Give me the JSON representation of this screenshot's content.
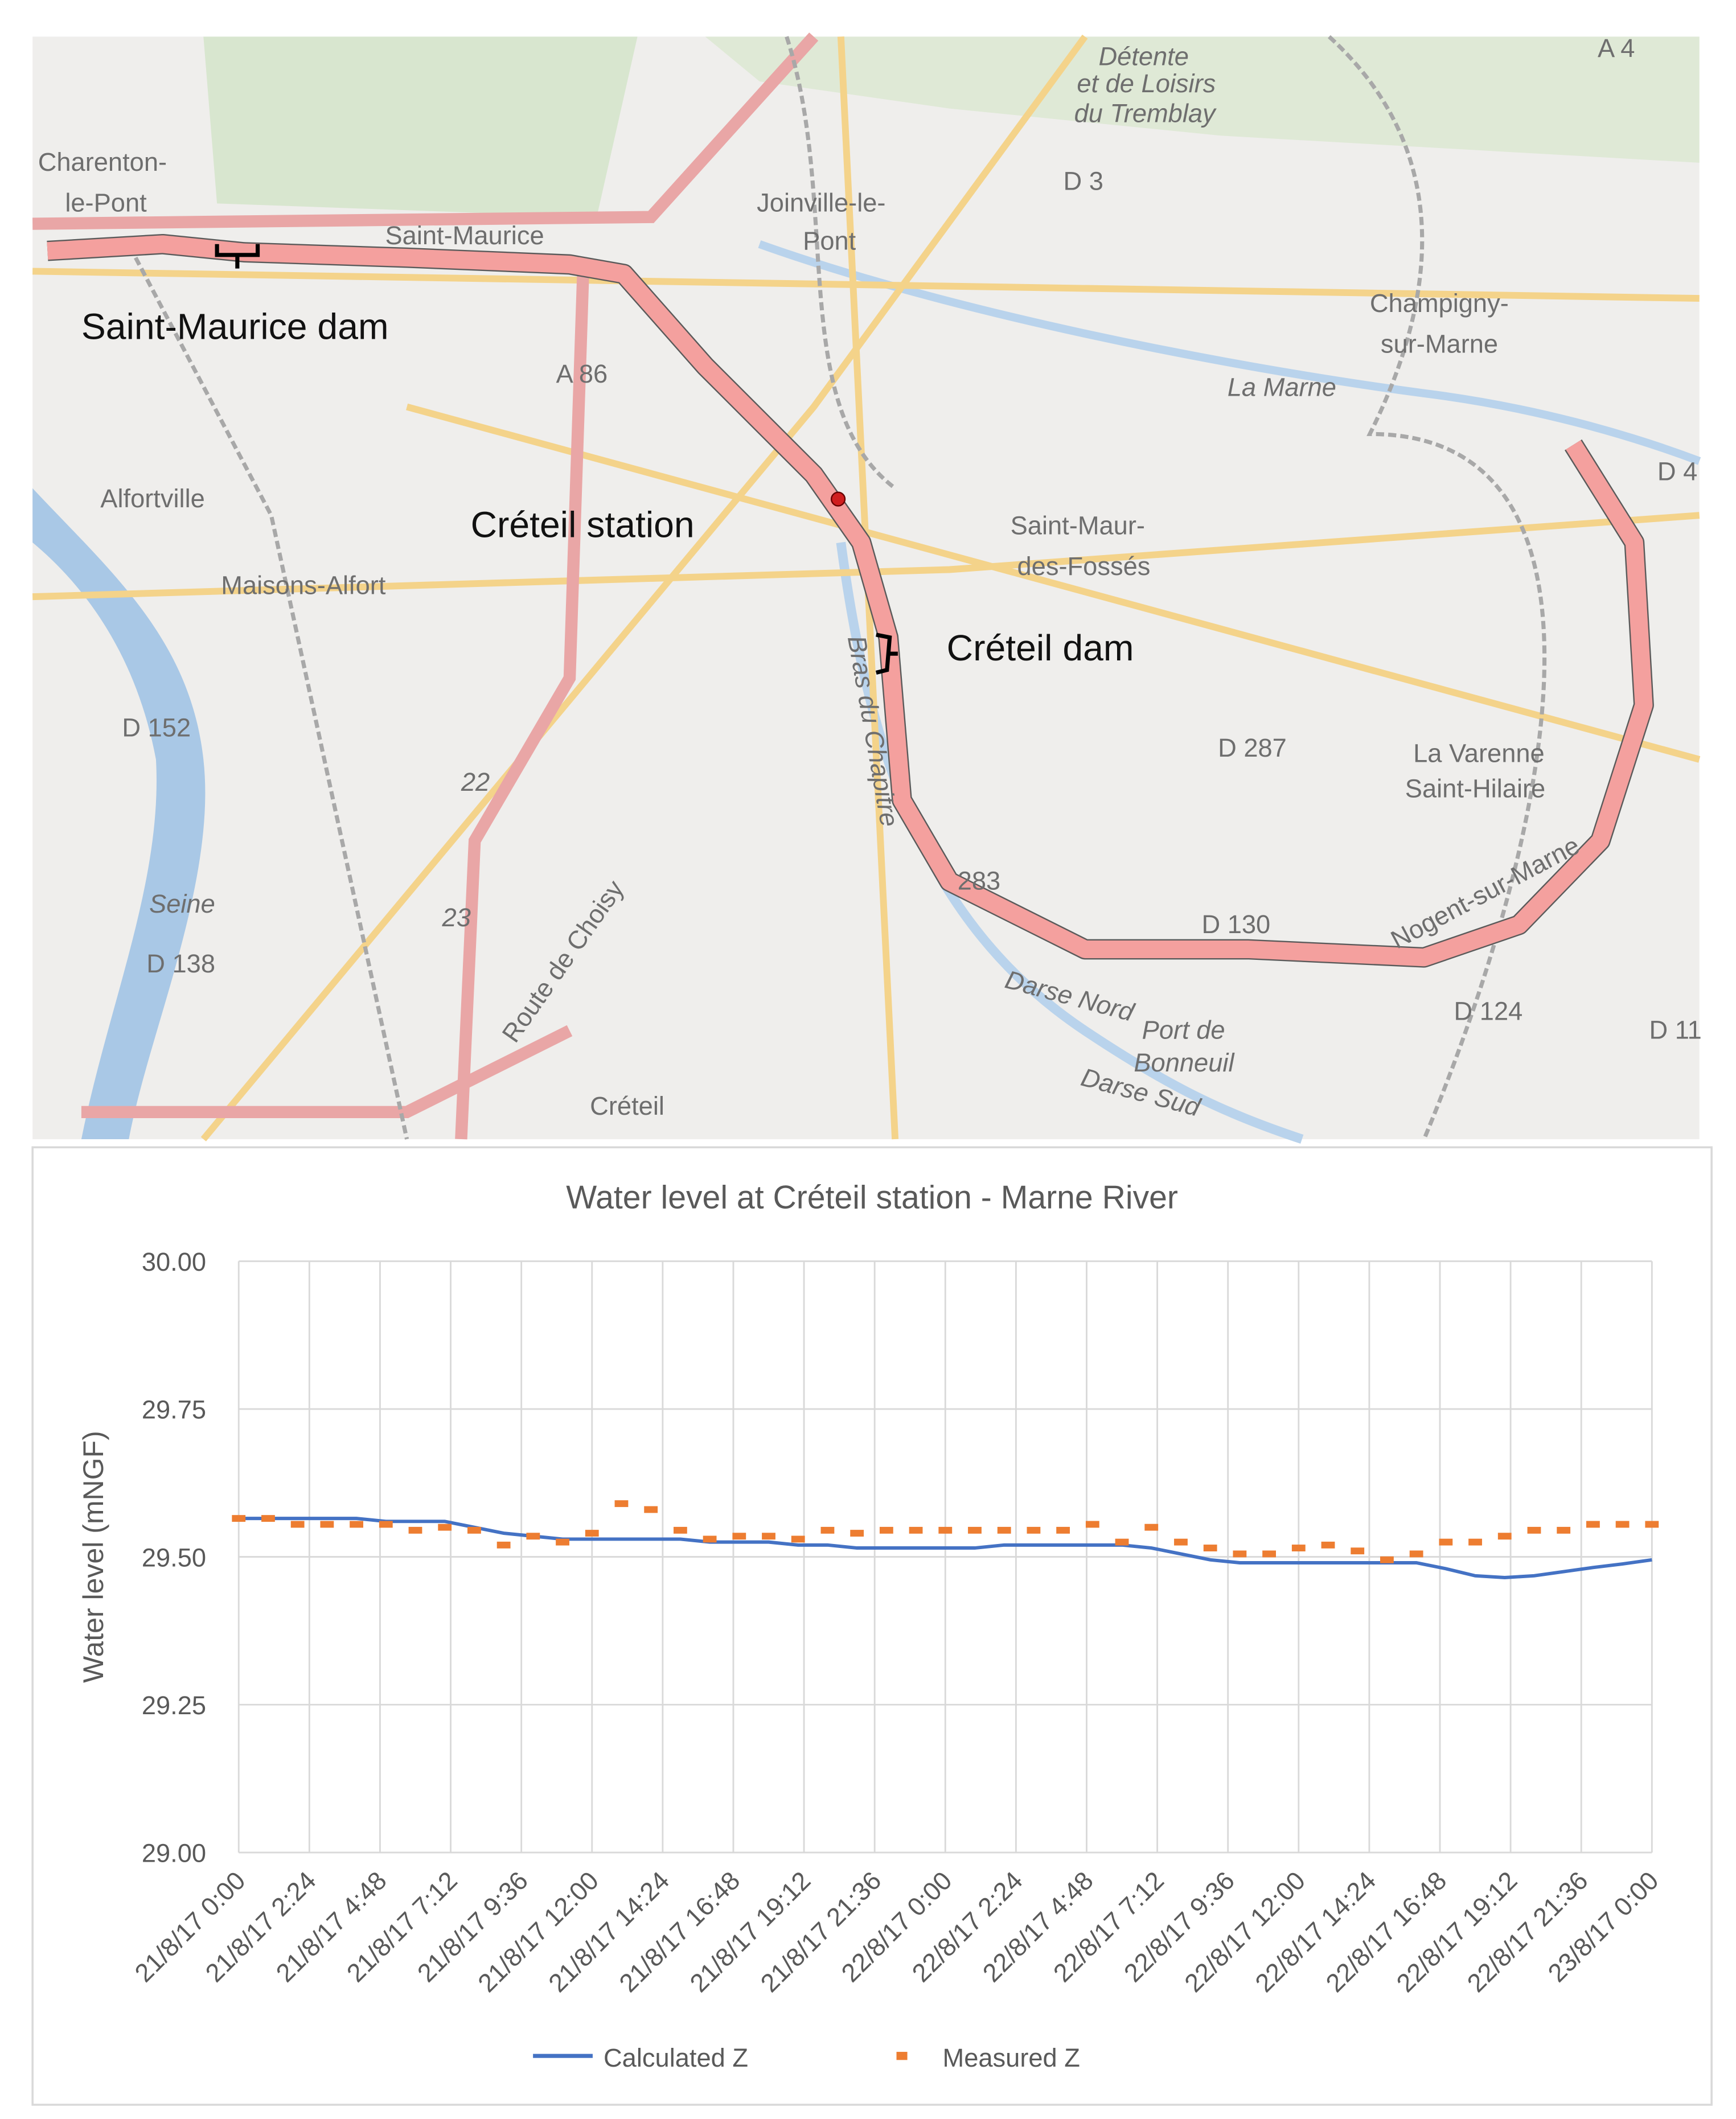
{
  "map": {
    "labels": [
      "Charenton-",
      "le-Pont",
      "Saint-Maurice",
      "Joinville-le-",
      "Pont",
      "Détente",
      "et de Loisirs",
      "du Tremblay",
      "A 4",
      "D 3",
      "Champigny-",
      "sur-Marne",
      "La Marne",
      "D 4",
      "A 86",
      "Alfortville",
      "Saint-Maur-",
      "des-Fossés",
      "Maisons-Alfort",
      "D 152",
      "D 287",
      "La Varenne",
      "Saint-Hilaire",
      "D 130",
      "D 124",
      "D 11",
      "D 138",
      "Seine",
      "22",
      "23",
      "Route de Choisy",
      "Créteil",
      "Port de",
      "Bonneuil",
      "Darse Nord",
      "Darse Sud",
      "Bras du Chapitre",
      "Nogent-sur-Marne",
      "283"
    ],
    "annotations": [
      "Saint-Maurice dam",
      "Créteil station",
      "Créteil dam"
    ]
  },
  "chart_data": {
    "type": "line_scatter",
    "title": "Water level at Créteil station - Marne River",
    "ylabel": "Water level (mNGF)",
    "x": [
      "2017-08-21T00:00",
      "2017-08-21T01:00",
      "2017-08-21T02:00",
      "2017-08-21T03:00",
      "2017-08-21T04:00",
      "2017-08-21T05:00",
      "2017-08-21T06:00",
      "2017-08-21T07:00",
      "2017-08-21T08:00",
      "2017-08-21T09:00",
      "2017-08-21T10:00",
      "2017-08-21T11:00",
      "2017-08-21T12:00",
      "2017-08-21T13:00",
      "2017-08-21T14:00",
      "2017-08-21T15:00",
      "2017-08-21T16:00",
      "2017-08-21T17:00",
      "2017-08-21T18:00",
      "2017-08-21T19:00",
      "2017-08-21T20:00",
      "2017-08-21T21:00",
      "2017-08-21T22:00",
      "2017-08-21T23:00",
      "2017-08-22T00:00",
      "2017-08-22T01:00",
      "2017-08-22T02:00",
      "2017-08-22T03:00",
      "2017-08-22T04:00",
      "2017-08-22T05:00",
      "2017-08-22T06:00",
      "2017-08-22T07:00",
      "2017-08-22T08:00",
      "2017-08-22T09:00",
      "2017-08-22T10:00",
      "2017-08-22T11:00",
      "2017-08-22T12:00",
      "2017-08-22T13:00",
      "2017-08-22T14:00",
      "2017-08-22T15:00",
      "2017-08-22T16:00",
      "2017-08-22T17:00",
      "2017-08-22T18:00",
      "2017-08-22T19:00",
      "2017-08-22T20:00",
      "2017-08-22T21:00",
      "2017-08-22T22:00",
      "2017-08-22T23:00",
      "2017-08-23T00:00"
    ],
    "series": [
      {
        "name": "Calculated Z",
        "color": "#4472c4",
        "style": "line",
        "values": [
          29.565,
          29.565,
          29.565,
          29.565,
          29.565,
          29.56,
          29.56,
          29.56,
          29.55,
          29.54,
          29.535,
          29.53,
          29.53,
          29.53,
          29.53,
          29.53,
          29.525,
          29.525,
          29.525,
          29.52,
          29.52,
          29.515,
          29.515,
          29.515,
          29.515,
          29.515,
          29.52,
          29.52,
          29.52,
          29.52,
          29.52,
          29.515,
          29.505,
          29.495,
          29.49,
          29.49,
          29.49,
          29.49,
          29.49,
          29.49,
          29.49,
          29.48,
          29.468,
          29.465,
          29.468,
          29.475,
          29.482,
          29.488,
          29.495
        ]
      },
      {
        "name": "Measured Z",
        "color": "#ed7d31",
        "style": "markers",
        "values": [
          29.565,
          29.565,
          29.555,
          29.555,
          29.555,
          29.555,
          29.545,
          29.55,
          29.545,
          29.52,
          29.535,
          29.525,
          29.54,
          29.59,
          29.58,
          29.545,
          29.53,
          29.535,
          29.535,
          29.53,
          29.545,
          29.54,
          29.545,
          29.545,
          29.545,
          29.545,
          29.545,
          29.545,
          29.545,
          29.555,
          29.525,
          29.55,
          29.525,
          29.515,
          29.505,
          29.505,
          29.515,
          29.52,
          29.51,
          29.495,
          29.505,
          29.525,
          29.525,
          29.535,
          29.545,
          29.545,
          29.555,
          29.555,
          29.555
        ]
      }
    ],
    "xlim": [
      "2017-08-21T00:00",
      "2017-08-23T00:00"
    ],
    "xticks": [
      {
        "value": "2017-08-21T00:00",
        "label": "21/8/17 0:00"
      },
      {
        "value": "2017-08-21T02:24",
        "label": "21/8/17 2:24"
      },
      {
        "value": "2017-08-21T04:48",
        "label": "21/8/17 4:48"
      },
      {
        "value": "2017-08-21T07:12",
        "label": "21/8/17 7:12"
      },
      {
        "value": "2017-08-21T09:36",
        "label": "21/8/17 9:36"
      },
      {
        "value": "2017-08-21T12:00",
        "label": "21/8/17 12:00"
      },
      {
        "value": "2017-08-21T14:24",
        "label": "21/8/17 14:24"
      },
      {
        "value": "2017-08-21T16:48",
        "label": "21/8/17 16:48"
      },
      {
        "value": "2017-08-21T19:12",
        "label": "21/8/17 19:12"
      },
      {
        "value": "2017-08-21T21:36",
        "label": "21/8/17 21:36"
      },
      {
        "value": "2017-08-22T00:00",
        "label": "22/8/17 0:00"
      },
      {
        "value": "2017-08-22T02:24",
        "label": "22/8/17 2:24"
      },
      {
        "value": "2017-08-22T04:48",
        "label": "22/8/17 4:48"
      },
      {
        "value": "2017-08-22T07:12",
        "label": "22/8/17 7:12"
      },
      {
        "value": "2017-08-22T09:36",
        "label": "22/8/17 9:36"
      },
      {
        "value": "2017-08-22T12:00",
        "label": "22/8/17 12:00"
      },
      {
        "value": "2017-08-22T14:24",
        "label": "22/8/17 14:24"
      },
      {
        "value": "2017-08-22T16:48",
        "label": "22/8/17 16:48"
      },
      {
        "value": "2017-08-22T19:12",
        "label": "22/8/17 19:12"
      },
      {
        "value": "2017-08-22T21:36",
        "label": "22/8/17 21:36"
      },
      {
        "value": "2017-08-23T00:00",
        "label": "23/8/17 0:00"
      }
    ],
    "ylim": [
      29,
      30
    ],
    "yticks": [
      {
        "value": 29,
        "label": "29.00"
      },
      {
        "value": 29.25,
        "label": "29.25"
      },
      {
        "value": 29.5,
        "label": "29.50"
      },
      {
        "value": 29.75,
        "label": "29.75"
      },
      {
        "value": 30,
        "label": "30.00"
      }
    ],
    "grid": true,
    "legend": "bottom"
  }
}
